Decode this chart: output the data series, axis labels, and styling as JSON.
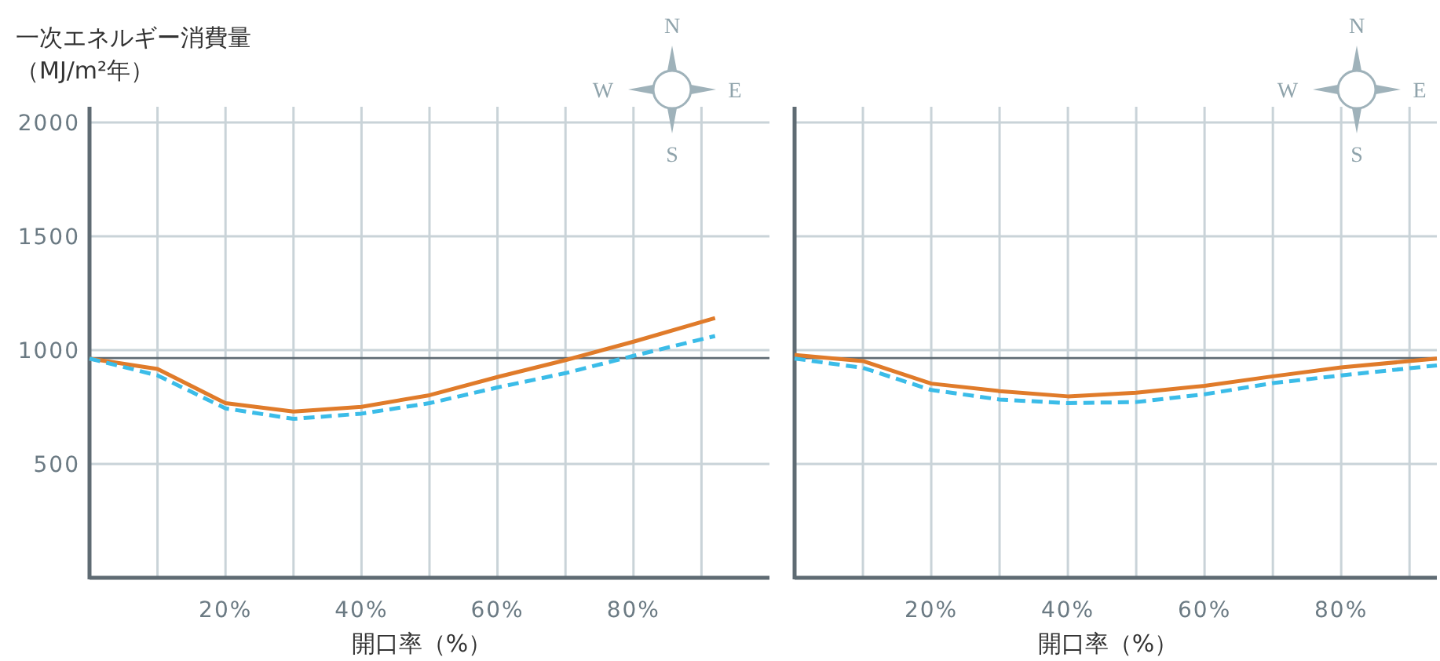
{
  "chart_data": [
    {
      "type": "line",
      "ylabel": "一次エネルギー消費量（MJ/m²年）",
      "xlabel": "開口率（%）",
      "xlim": [
        0,
        100
      ],
      "ylim": [
        0,
        2000
      ],
      "xticks": [
        {
          "value": 10,
          "label": null
        },
        {
          "value": 20,
          "label": "20%"
        },
        {
          "value": 30,
          "label": null
        },
        {
          "value": 40,
          "label": "40%"
        },
        {
          "value": 50,
          "label": null
        },
        {
          "value": 60,
          "label": "60%"
        },
        {
          "value": 70,
          "label": null
        },
        {
          "value": 80,
          "label": "80%"
        },
        {
          "value": 90,
          "label": null
        }
      ],
      "yticks": [
        500,
        1000,
        1500,
        2000
      ],
      "grid": true,
      "ref_lines": [
        {
          "axis": "y",
          "value": 965,
          "color": "#5f6b73"
        }
      ],
      "annotations": [
        "N",
        "W",
        "E",
        "S"
      ],
      "series": [
        {
          "color": "#e07b2a",
          "x": [
            0,
            10,
            20,
            30,
            40,
            50,
            60,
            70,
            80,
            92
          ],
          "values": [
            963,
            917,
            767,
            730,
            751,
            802,
            882,
            956,
            1037,
            1141
          ]
        },
        {
          "color": "#3bbce8",
          "line_style": "dashed",
          "x": [
            0,
            10,
            20,
            30,
            40,
            50,
            60,
            70,
            80,
            92
          ],
          "values": [
            963,
            889,
            744,
            698,
            721,
            767,
            836,
            899,
            975,
            1062
          ]
        }
      ]
    },
    {
      "type": "line",
      "xlabel": "開口率（%）",
      "xlim": [
        0,
        94
      ],
      "ylim": [
        0,
        2000
      ],
      "tick_labels": "x",
      "xticks": [
        {
          "value": 10,
          "label": null
        },
        {
          "value": 20,
          "label": "20%"
        },
        {
          "value": 30,
          "label": null
        },
        {
          "value": 40,
          "label": "40%"
        },
        {
          "value": 50,
          "label": null
        },
        {
          "value": 60,
          "label": "60%"
        },
        {
          "value": 70,
          "label": null
        },
        {
          "value": 80,
          "label": "80%"
        },
        {
          "value": 90,
          "label": null
        }
      ],
      "yticks": [
        500,
        1000,
        1500,
        2000
      ],
      "grid": true,
      "ref_lines": [
        {
          "axis": "y",
          "value": 965,
          "color": "#5f6b73"
        }
      ],
      "annotations": [
        "N",
        "W",
        "E",
        "S"
      ],
      "series": [
        {
          "color": "#e07b2a",
          "x": [
            0,
            10,
            20,
            30,
            40,
            50,
            60,
            70,
            80,
            94
          ],
          "values": [
            979,
            952,
            853,
            820,
            797,
            813,
            843,
            885,
            924,
            963
          ]
        },
        {
          "color": "#3bbce8",
          "line_style": "dashed",
          "x": [
            0,
            10,
            20,
            30,
            40,
            50,
            60,
            70,
            80,
            94
          ],
          "values": [
            963,
            922,
            825,
            783,
            767,
            772,
            806,
            855,
            889,
            933
          ]
        }
      ]
    }
  ]
}
